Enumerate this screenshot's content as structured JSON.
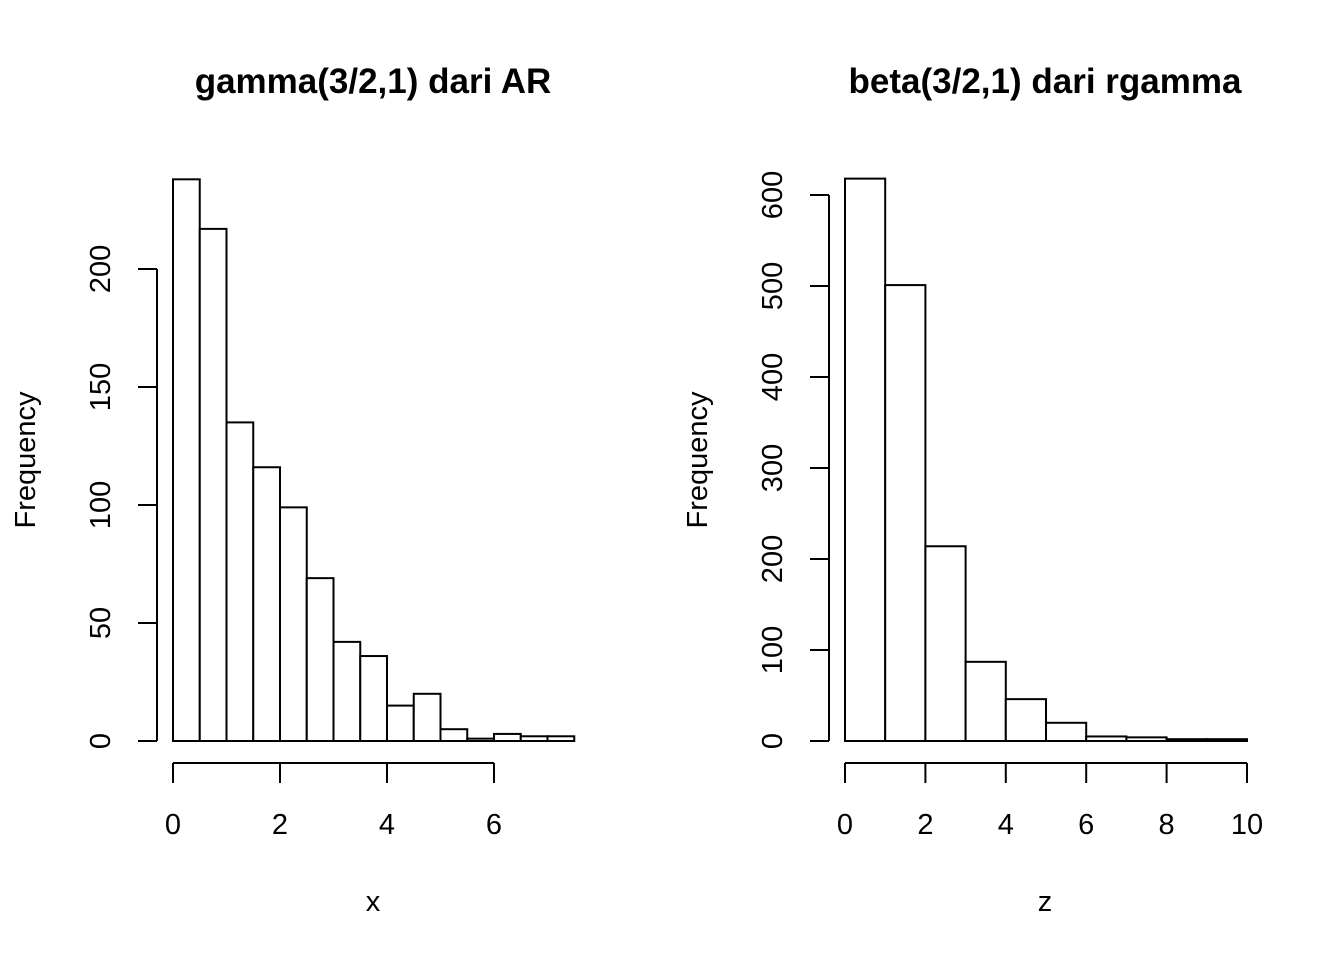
{
  "chart_data": [
    {
      "type": "bar",
      "title": "gamma(3/2,1) dari AR",
      "xlabel": "x",
      "ylabel": "Frequency",
      "bin_width": 0.5,
      "bin_start": 0,
      "values": [
        238,
        217,
        135,
        116,
        99,
        69,
        42,
        36,
        15,
        20,
        5,
        1,
        3,
        2,
        2
      ],
      "xticks": [
        0,
        2,
        4,
        6
      ],
      "yticks": [
        0,
        50,
        100,
        150,
        200
      ],
      "xlim": [
        0,
        7.5
      ],
      "ylim": [
        0,
        238
      ]
    },
    {
      "type": "bar",
      "title": "beta(3/2,1) dari rgamma",
      "xlabel": "z",
      "ylabel": "Frequency",
      "bin_width": 1,
      "bin_start": 0,
      "values": [
        618,
        501,
        214,
        87,
        46,
        20,
        5,
        4,
        2,
        2
      ],
      "xticks": [
        0,
        2,
        4,
        6,
        8,
        10
      ],
      "yticks": [
        0,
        100,
        200,
        300,
        400,
        500,
        600
      ],
      "xlim": [
        0,
        10
      ],
      "ylim": [
        0,
        618
      ]
    }
  ]
}
